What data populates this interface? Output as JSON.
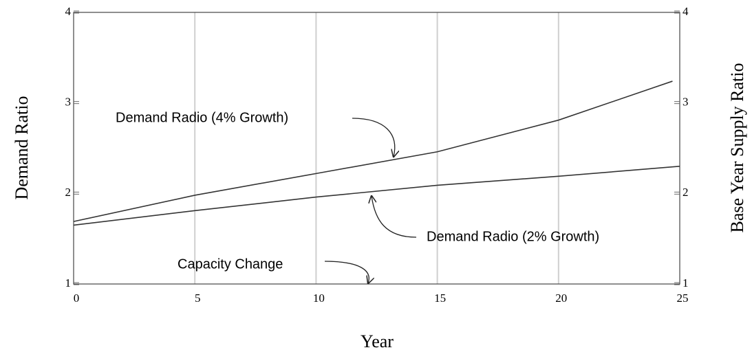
{
  "chart_data": {
    "type": "line",
    "xlabel": "Year",
    "ylabel": "Demand Ratio",
    "y2label": "Base Year Supply Ratio",
    "xlim": [
      0,
      25
    ],
    "xticks": [
      0,
      5,
      10,
      15,
      20,
      25
    ],
    "ylim": [
      1,
      4
    ],
    "yticks": [
      1,
      2,
      3,
      4
    ],
    "y2lim": [
      1,
      4
    ],
    "y2ticks": [
      1,
      2,
      3,
      4
    ],
    "grid": true,
    "series": [
      {
        "name": "Demand Radio (4% Growth)",
        "color": "#333333",
        "x": [
          0,
          5,
          10,
          15,
          20,
          24.7
        ],
        "values": [
          1.69,
          1.98,
          2.22,
          2.46,
          2.81,
          3.24
        ]
      },
      {
        "name": "Demand Radio (2% Growth)",
        "color": "#333333",
        "x": [
          0,
          5,
          10,
          15,
          20,
          25
        ],
        "values": [
          1.65,
          1.81,
          1.96,
          2.09,
          2.19,
          2.3
        ]
      }
    ],
    "annotations": [
      "Demand Radio (4% Growth)",
      "Demand Radio (2% Growth)",
      "Capacity Change"
    ]
  }
}
